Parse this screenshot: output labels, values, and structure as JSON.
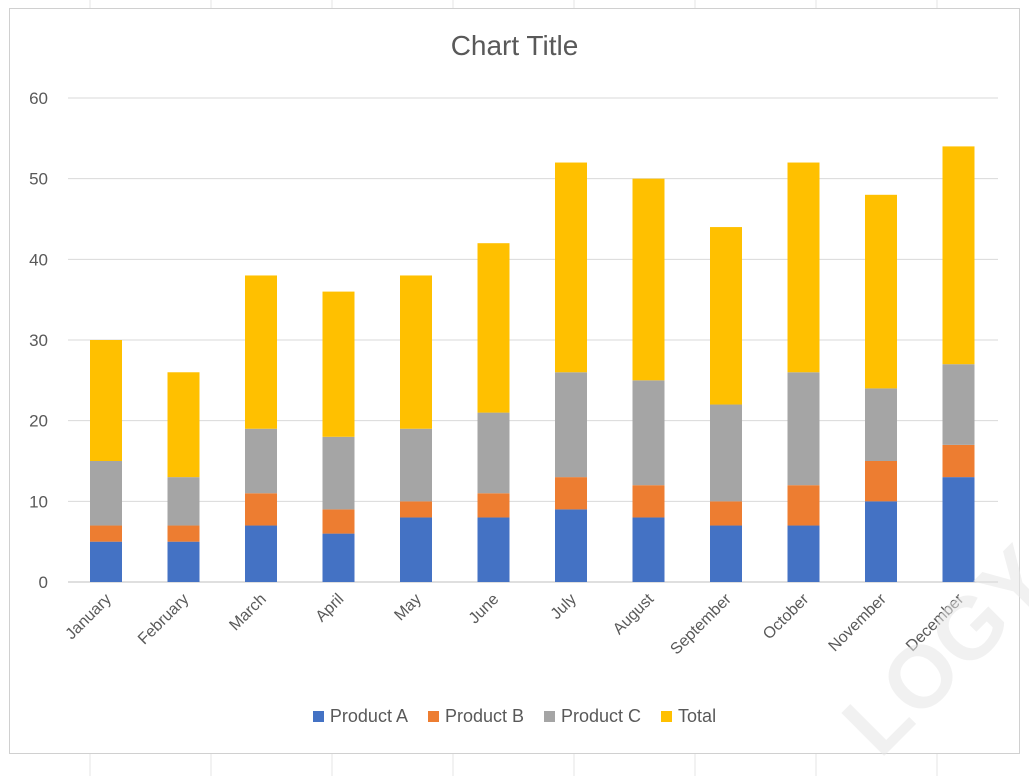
{
  "chart_data": {
    "type": "bar",
    "stacked": true,
    "title": "Chart Title",
    "categories": [
      "January",
      "February",
      "March",
      "April",
      "May",
      "June",
      "July",
      "August",
      "September",
      "October",
      "November",
      "December"
    ],
    "series": [
      {
        "name": "Product A",
        "color": "#4472C4",
        "values": [
          5,
          5,
          7,
          6,
          8,
          8,
          9,
          8,
          7,
          7,
          10,
          13
        ]
      },
      {
        "name": "Product B",
        "color": "#ED7D31",
        "values": [
          2,
          2,
          4,
          3,
          2,
          3,
          4,
          4,
          3,
          5,
          5,
          4
        ]
      },
      {
        "name": "Product C",
        "color": "#A5A5A5",
        "values": [
          8,
          6,
          8,
          9,
          9,
          10,
          13,
          13,
          12,
          14,
          9,
          10
        ]
      },
      {
        "name": "Total",
        "color": "#FFC000",
        "values": [
          15,
          13,
          19,
          18,
          19,
          21,
          26,
          25,
          22,
          26,
          24,
          27
        ]
      }
    ],
    "ylim": [
      0,
      60
    ],
    "yticks": [
      0,
      10,
      20,
      30,
      40,
      50,
      60
    ],
    "grid": true,
    "legend_position": "bottom",
    "xlabel": "",
    "ylabel": ""
  },
  "watermark": "LOGY.C"
}
